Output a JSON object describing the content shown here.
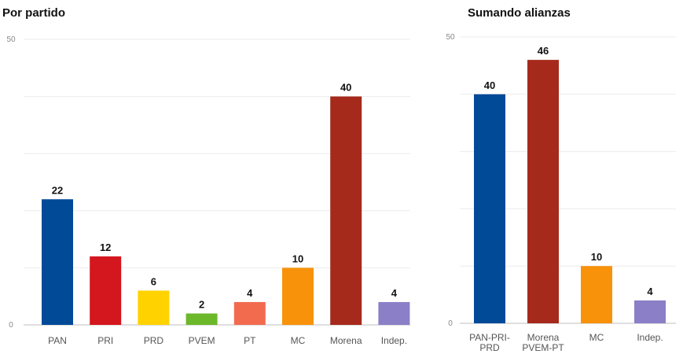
{
  "chart_data": [
    {
      "type": "bar",
      "title": "Por partido",
      "categories": [
        "PAN",
        "PRI",
        "PRD",
        "PVEM",
        "PT",
        "MC",
        "Morena",
        "Indep."
      ],
      "values": [
        22,
        12,
        6,
        2,
        4,
        10,
        40,
        4
      ],
      "colors": [
        "#004a98",
        "#d4161e",
        "#ffd200",
        "#6bb82a",
        "#f26b4f",
        "#f7920a",
        "#a52a1c",
        "#8b7fc7"
      ],
      "ylim": [
        0,
        50
      ],
      "yticks": [
        "0",
        "50"
      ],
      "grid": true,
      "xlabel": "",
      "ylabel": ""
    },
    {
      "type": "bar",
      "title": "Sumando alianzas",
      "categories": [
        "PAN-PRI-PRD",
        "Morena PVEM-PT",
        "MC",
        "Indep."
      ],
      "values": [
        40,
        46,
        10,
        4
      ],
      "colors": [
        "#004a98",
        "#a52a1c",
        "#f7920a",
        "#8b7fc7"
      ],
      "ylim": [
        0,
        50
      ],
      "yticks": [
        "0",
        "50"
      ],
      "grid": true,
      "xlabel": "",
      "ylabel": ""
    }
  ]
}
